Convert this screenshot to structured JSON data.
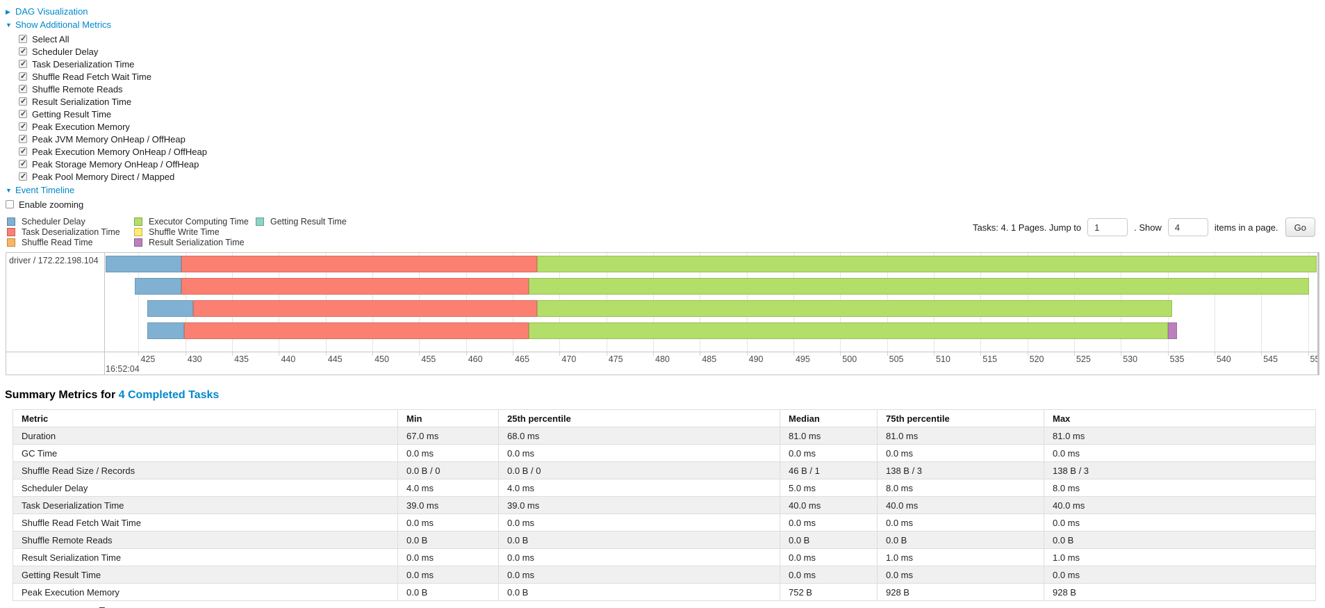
{
  "page": {
    "background": "#ffffff",
    "link_color": "#0088cc"
  },
  "collapsibles": {
    "dag": {
      "label": "DAG Visualization",
      "state": "collapsed"
    },
    "metrics": {
      "label": "Show Additional Metrics",
      "state": "expanded"
    },
    "timeline": {
      "label": "Event Timeline",
      "state": "expanded"
    }
  },
  "metrics_panel": {
    "all_checked": true,
    "items": [
      "Select All",
      "Scheduler Delay",
      "Task Deserialization Time",
      "Shuffle Read Fetch Wait Time",
      "Shuffle Remote Reads",
      "Result Serialization Time",
      "Getting Result Time",
      "Peak Execution Memory",
      "Peak JVM Memory OnHeap / OffHeap",
      "Peak Execution Memory OnHeap / OffHeap",
      "Peak Storage Memory OnHeap / OffHeap",
      "Peak Pool Memory Direct / Mapped"
    ]
  },
  "enable_zooming": {
    "label": "Enable zooming",
    "checked": false
  },
  "pagination": {
    "prefix": "Tasks: 4. 1 Pages. Jump to",
    "jump_value": "1",
    "mid": ". Show",
    "show_value": "4",
    "suffix": "items in a page.",
    "go_label": "Go"
  },
  "chart_data": {
    "type": "timeline",
    "title": "Event Timeline",
    "group_label": "driver / 172.22.198.104",
    "base_time_label": "16:52:04",
    "x_axis": {
      "unit": "ms after 16:52:04",
      "min": 421.4,
      "max": 551.0,
      "tick_start": 425,
      "tick_end": 550,
      "tick_step": 5
    },
    "colors": {
      "scheduler_delay": "#80B1D3",
      "task_deserialization": "#FB8072",
      "shuffle_read": "#FDB462",
      "executor_computing": "#B3DE69",
      "shuffle_write": "#FFED6F",
      "result_serialization": "#BC80BD",
      "getting_result": "#8DD3C7"
    },
    "legend_columns": [
      [
        {
          "label": "Scheduler Delay",
          "type": "scheduler_delay"
        },
        {
          "label": "Task Deserialization Time",
          "type": "task_deserialization"
        },
        {
          "label": "Shuffle Read Time",
          "type": "shuffle_read"
        }
      ],
      [
        {
          "label": "Executor Computing Time",
          "type": "executor_computing"
        },
        {
          "label": "Shuffle Write Time",
          "type": "shuffle_write"
        },
        {
          "label": "Result Serialization Time",
          "type": "result_serialization"
        }
      ],
      [
        {
          "label": "Getting Result Time",
          "type": "getting_result"
        }
      ]
    ],
    "tasks": [
      {
        "segments": [
          {
            "type": "scheduler_delay",
            "start": 421.5,
            "end": 429.6
          },
          {
            "type": "task_deserialization",
            "start": 429.6,
            "end": 467.6
          },
          {
            "type": "executor_computing",
            "start": 467.6,
            "end": 550.9
          }
        ]
      },
      {
        "segments": [
          {
            "type": "scheduler_delay",
            "start": 424.6,
            "end": 429.6
          },
          {
            "type": "task_deserialization",
            "start": 429.6,
            "end": 466.7
          },
          {
            "type": "executor_computing",
            "start": 466.7,
            "end": 550.1
          }
        ]
      },
      {
        "segments": [
          {
            "type": "scheduler_delay",
            "start": 425.9,
            "end": 430.8
          },
          {
            "type": "task_deserialization",
            "start": 430.8,
            "end": 467.6
          },
          {
            "type": "executor_computing",
            "start": 467.6,
            "end": 535.5
          }
        ]
      },
      {
        "segments": [
          {
            "type": "scheduler_delay",
            "start": 425.9,
            "end": 429.9
          },
          {
            "type": "task_deserialization",
            "start": 429.9,
            "end": 466.7
          },
          {
            "type": "executor_computing",
            "start": 466.7,
            "end": 535.0
          },
          {
            "type": "result_serialization",
            "start": 535.0,
            "end": 536.0
          }
        ]
      }
    ]
  },
  "summary": {
    "title_prefix": "Summary Metrics for",
    "title_link": "4 Completed Tasks",
    "columns": [
      "Metric",
      "Min",
      "25th percentile",
      "Median",
      "75th percentile",
      "Max"
    ],
    "rows": [
      {
        "metric": "Duration",
        "values": [
          "67.0 ms",
          "68.0 ms",
          "81.0 ms",
          "81.0 ms",
          "81.0 ms"
        ]
      },
      {
        "metric": "GC Time",
        "values": [
          "0.0 ms",
          "0.0 ms",
          "0.0 ms",
          "0.0 ms",
          "0.0 ms"
        ]
      },
      {
        "metric": "Shuffle Read Size / Records",
        "values": [
          "0.0 B / 0",
          "0.0 B / 0",
          "46 B / 1",
          "138 B / 3",
          "138 B / 3"
        ]
      },
      {
        "metric": "Scheduler Delay",
        "values": [
          "4.0 ms",
          "4.0 ms",
          "5.0 ms",
          "8.0 ms",
          "8.0 ms"
        ]
      },
      {
        "metric": "Task Deserialization Time",
        "values": [
          "39.0 ms",
          "39.0 ms",
          "40.0 ms",
          "40.0 ms",
          "40.0 ms"
        ]
      },
      {
        "metric": "Shuffle Read Fetch Wait Time",
        "values": [
          "0.0 ms",
          "0.0 ms",
          "0.0 ms",
          "0.0 ms",
          "0.0 ms"
        ]
      },
      {
        "metric": "Shuffle Remote Reads",
        "values": [
          "0.0 B",
          "0.0 B",
          "0.0 B",
          "0.0 B",
          "0.0 B"
        ]
      },
      {
        "metric": "Result Serialization Time",
        "values": [
          "0.0 ms",
          "0.0 ms",
          "0.0 ms",
          "1.0 ms",
          "1.0 ms"
        ]
      },
      {
        "metric": "Getting Result Time",
        "values": [
          "0.0 ms",
          "0.0 ms",
          "0.0 ms",
          "0.0 ms",
          "0.0 ms"
        ]
      },
      {
        "metric": "Peak Execution Memory",
        "values": [
          "0.0 B",
          "0.0 B",
          "752 B",
          "928 B",
          "928 B"
        ]
      }
    ]
  }
}
